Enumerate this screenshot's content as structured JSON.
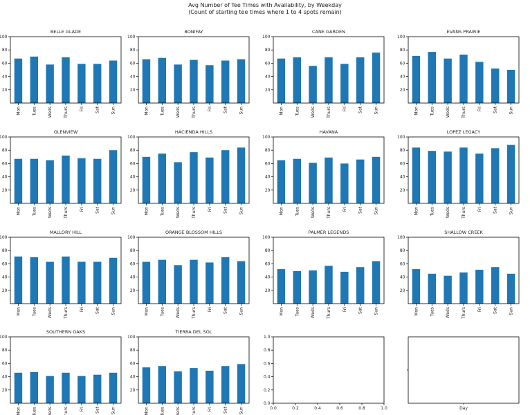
{
  "title": "Avg Number of Tee Times with Availability, by Weekday",
  "subtitle": "(Count of starting tee times where 1 to 4 spots remain)",
  "colors": {
    "bar": "#1f77b4",
    "axis": "#000000"
  },
  "chart_data": [
    {
      "type": "bar",
      "title": "BELLE GLADE",
      "categories": [
        "Mon",
        "Tues",
        "Weds",
        "Thurs",
        "Fri",
        "Sat",
        "Sun"
      ],
      "values": [
        67,
        70,
        58,
        69,
        59,
        59,
        64
      ],
      "ylim": [
        0,
        100
      ],
      "yticks": [
        20,
        40,
        60,
        80,
        100
      ],
      "xlabel": "",
      "ylabel": ""
    },
    {
      "type": "bar",
      "title": "BONIFAY",
      "categories": [
        "Mon",
        "Tues",
        "Weds",
        "Thurs",
        "Fri",
        "Sat",
        "Sun"
      ],
      "values": [
        66,
        68,
        58,
        65,
        57,
        64,
        66
      ],
      "ylim": [
        0,
        100
      ],
      "yticks": [
        20,
        40,
        60,
        80,
        100
      ],
      "xlabel": "",
      "ylabel": ""
    },
    {
      "type": "bar",
      "title": "CANE GARDEN",
      "categories": [
        "Mon",
        "Tues",
        "Weds",
        "Thurs",
        "Fri",
        "Sat",
        "Sun"
      ],
      "values": [
        67,
        69,
        56,
        69,
        59,
        69,
        76
      ],
      "ylim": [
        0,
        100
      ],
      "yticks": [
        20,
        40,
        60,
        80,
        100
      ],
      "xlabel": "",
      "ylabel": ""
    },
    {
      "type": "bar",
      "title": "EVANS PRAIRIE",
      "categories": [
        "Mon",
        "Tues",
        "Weds",
        "Thurs",
        "Fri",
        "Sat",
        "Sun"
      ],
      "values": [
        71,
        77,
        67,
        73,
        62,
        52,
        50
      ],
      "ylim": [
        0,
        100
      ],
      "yticks": [
        20,
        40,
        60,
        80,
        100
      ],
      "xlabel": "",
      "ylabel": ""
    },
    {
      "type": "bar",
      "title": "GLENVIEW",
      "categories": [
        "Mon",
        "Tues",
        "Weds",
        "Thurs",
        "Fri",
        "Sat",
        "Sun"
      ],
      "values": [
        67,
        67,
        65,
        72,
        68,
        67,
        80
      ],
      "ylim": [
        0,
        100
      ],
      "yticks": [
        20,
        40,
        60,
        80,
        100
      ],
      "xlabel": "",
      "ylabel": ""
    },
    {
      "type": "bar",
      "title": "HACIENDA HILLS",
      "categories": [
        "Mon",
        "Tues",
        "Weds",
        "Thurs",
        "Fri",
        "Sat",
        "Sun"
      ],
      "values": [
        70,
        75,
        62,
        77,
        69,
        80,
        84
      ],
      "ylim": [
        0,
        100
      ],
      "yticks": [
        20,
        40,
        60,
        80,
        100
      ],
      "xlabel": "",
      "ylabel": ""
    },
    {
      "type": "bar",
      "title": "HAVANA",
      "categories": [
        "Mon",
        "Tues",
        "Weds",
        "Thurs",
        "Fri",
        "Sat",
        "Sun"
      ],
      "values": [
        65,
        67,
        61,
        69,
        60,
        66,
        70
      ],
      "ylim": [
        0,
        100
      ],
      "yticks": [
        20,
        40,
        60,
        80,
        100
      ],
      "xlabel": "",
      "ylabel": ""
    },
    {
      "type": "bar",
      "title": "LOPEZ LEGACY",
      "categories": [
        "Mon",
        "Tues",
        "Weds",
        "Thurs",
        "Fri",
        "Sat",
        "Sun"
      ],
      "values": [
        84,
        79,
        78,
        84,
        75,
        83,
        88
      ],
      "ylim": [
        0,
        100
      ],
      "yticks": [
        20,
        40,
        60,
        80,
        100
      ],
      "xlabel": "",
      "ylabel": ""
    },
    {
      "type": "bar",
      "title": "MALLORY HILL",
      "categories": [
        "Mon",
        "Tues",
        "Weds",
        "Thurs",
        "Fri",
        "Sat",
        "Sun"
      ],
      "values": [
        71,
        70,
        63,
        71,
        63,
        63,
        69
      ],
      "ylim": [
        0,
        100
      ],
      "yticks": [
        20,
        40,
        60,
        80,
        100
      ],
      "xlabel": "",
      "ylabel": ""
    },
    {
      "type": "bar",
      "title": "ORANGE BLOSSOM HILLS",
      "categories": [
        "Mon",
        "Tues",
        "Weds",
        "Thurs",
        "Fri",
        "Sat",
        "Sun"
      ],
      "values": [
        63,
        66,
        58,
        66,
        62,
        70,
        64
      ],
      "ylim": [
        0,
        100
      ],
      "yticks": [
        20,
        40,
        60,
        80,
        100
      ],
      "xlabel": "",
      "ylabel": ""
    },
    {
      "type": "bar",
      "title": "PALMER LEGENDS",
      "categories": [
        "Mon",
        "Tues",
        "Weds",
        "Thurs",
        "Fri",
        "Sat",
        "Sun"
      ],
      "values": [
        52,
        49,
        50,
        57,
        48,
        55,
        64
      ],
      "ylim": [
        0,
        100
      ],
      "yticks": [
        20,
        40,
        60,
        80,
        100
      ],
      "xlabel": "",
      "ylabel": ""
    },
    {
      "type": "bar",
      "title": "SHALLOW CREEK",
      "categories": [
        "Mon",
        "Tues",
        "Weds",
        "Thurs",
        "Fri",
        "Sat",
        "Sun"
      ],
      "values": [
        52,
        45,
        42,
        47,
        51,
        55,
        45
      ],
      "ylim": [
        0,
        100
      ],
      "yticks": [
        20,
        40,
        60,
        80,
        100
      ],
      "xlabel": "",
      "ylabel": ""
    },
    {
      "type": "bar",
      "title": "SOUTHERN OAKS",
      "categories": [
        "Mon",
        "Tues",
        "Weds",
        "Thurs",
        "Fri",
        "Sat",
        "Sun"
      ],
      "values": [
        46,
        47,
        41,
        46,
        41,
        43,
        46
      ],
      "ylim": [
        0,
        100
      ],
      "yticks": [
        20,
        40,
        60,
        80,
        100
      ],
      "xlabel": "",
      "ylabel": ""
    },
    {
      "type": "bar",
      "title": "TIERRA DEL SOL",
      "categories": [
        "Mon",
        "Tues",
        "Weds",
        "Thurs",
        "Fri",
        "Sat",
        "Sun"
      ],
      "values": [
        54,
        56,
        48,
        53,
        49,
        56,
        59
      ],
      "ylim": [
        0,
        100
      ],
      "yticks": [
        20,
        40,
        60,
        80,
        100
      ],
      "xlabel": "",
      "ylabel": ""
    },
    {
      "type": "empty",
      "title": "",
      "xlim": [
        0,
        1
      ],
      "ylim": [
        0,
        1
      ],
      "xticks": [
        "0.0",
        "0.2",
        "0.4",
        "0.6",
        "0.8",
        "1.0"
      ],
      "yticks": [
        "0.0",
        "0.2",
        "0.4",
        "0.6",
        "0.8",
        "1.0"
      ]
    },
    {
      "type": "empty",
      "title": "",
      "xlabel": "Day",
      "xticks": [],
      "yticks": []
    }
  ]
}
